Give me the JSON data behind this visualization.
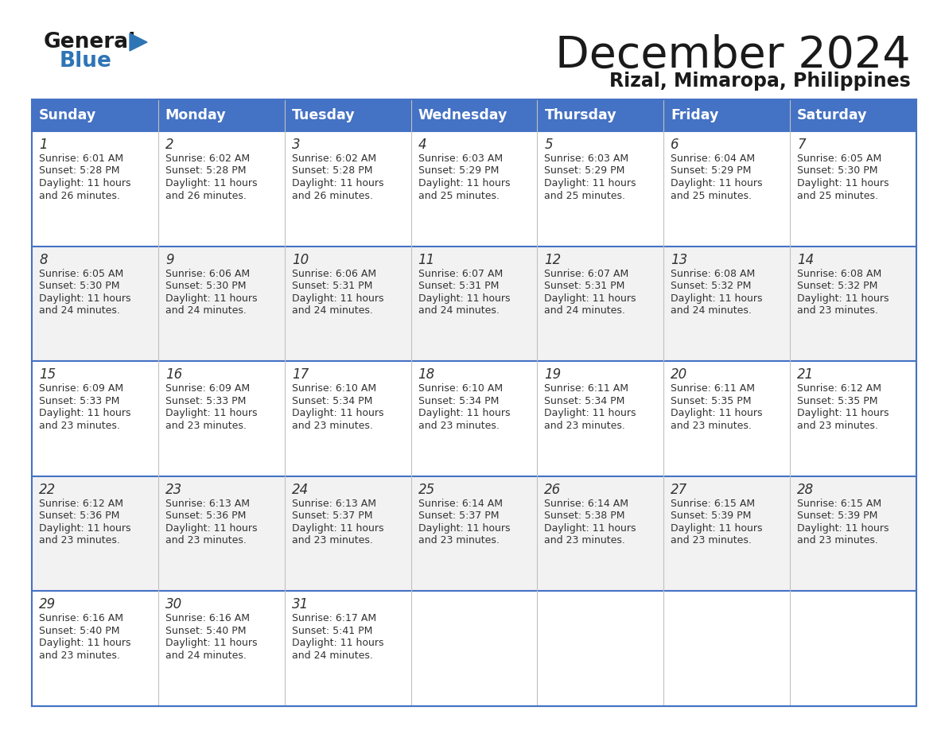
{
  "title": "December 2024",
  "subtitle": "Rizal, Mimaropa, Philippines",
  "header_color": "#4472C4",
  "header_text_color": "#FFFFFF",
  "background_color": "#FFFFFF",
  "cell_bg_odd": "#FFFFFF",
  "cell_bg_even": "#F2F2F2",
  "border_color": "#4472C4",
  "text_color": "#333333",
  "days_of_week": [
    "Sunday",
    "Monday",
    "Tuesday",
    "Wednesday",
    "Thursday",
    "Friday",
    "Saturday"
  ],
  "calendar_data": [
    [
      {
        "day": 1,
        "sunrise": "6:01 AM",
        "sunset": "5:28 PM",
        "daylight_minutes": "26"
      },
      {
        "day": 2,
        "sunrise": "6:02 AM",
        "sunset": "5:28 PM",
        "daylight_minutes": "26"
      },
      {
        "day": 3,
        "sunrise": "6:02 AM",
        "sunset": "5:28 PM",
        "daylight_minutes": "26"
      },
      {
        "day": 4,
        "sunrise": "6:03 AM",
        "sunset": "5:29 PM",
        "daylight_minutes": "25"
      },
      {
        "day": 5,
        "sunrise": "6:03 AM",
        "sunset": "5:29 PM",
        "daylight_minutes": "25"
      },
      {
        "day": 6,
        "sunrise": "6:04 AM",
        "sunset": "5:29 PM",
        "daylight_minutes": "25"
      },
      {
        "day": 7,
        "sunrise": "6:05 AM",
        "sunset": "5:30 PM",
        "daylight_minutes": "25"
      }
    ],
    [
      {
        "day": 8,
        "sunrise": "6:05 AM",
        "sunset": "5:30 PM",
        "daylight_minutes": "24"
      },
      {
        "day": 9,
        "sunrise": "6:06 AM",
        "sunset": "5:30 PM",
        "daylight_minutes": "24"
      },
      {
        "day": 10,
        "sunrise": "6:06 AM",
        "sunset": "5:31 PM",
        "daylight_minutes": "24"
      },
      {
        "day": 11,
        "sunrise": "6:07 AM",
        "sunset": "5:31 PM",
        "daylight_minutes": "24"
      },
      {
        "day": 12,
        "sunrise": "6:07 AM",
        "sunset": "5:31 PM",
        "daylight_minutes": "24"
      },
      {
        "day": 13,
        "sunrise": "6:08 AM",
        "sunset": "5:32 PM",
        "daylight_minutes": "24"
      },
      {
        "day": 14,
        "sunrise": "6:08 AM",
        "sunset": "5:32 PM",
        "daylight_minutes": "23"
      }
    ],
    [
      {
        "day": 15,
        "sunrise": "6:09 AM",
        "sunset": "5:33 PM",
        "daylight_minutes": "23"
      },
      {
        "day": 16,
        "sunrise": "6:09 AM",
        "sunset": "5:33 PM",
        "daylight_minutes": "23"
      },
      {
        "day": 17,
        "sunrise": "6:10 AM",
        "sunset": "5:34 PM",
        "daylight_minutes": "23"
      },
      {
        "day": 18,
        "sunrise": "6:10 AM",
        "sunset": "5:34 PM",
        "daylight_minutes": "23"
      },
      {
        "day": 19,
        "sunrise": "6:11 AM",
        "sunset": "5:34 PM",
        "daylight_minutes": "23"
      },
      {
        "day": 20,
        "sunrise": "6:11 AM",
        "sunset": "5:35 PM",
        "daylight_minutes": "23"
      },
      {
        "day": 21,
        "sunrise": "6:12 AM",
        "sunset": "5:35 PM",
        "daylight_minutes": "23"
      }
    ],
    [
      {
        "day": 22,
        "sunrise": "6:12 AM",
        "sunset": "5:36 PM",
        "daylight_minutes": "23"
      },
      {
        "day": 23,
        "sunrise": "6:13 AM",
        "sunset": "5:36 PM",
        "daylight_minutes": "23"
      },
      {
        "day": 24,
        "sunrise": "6:13 AM",
        "sunset": "5:37 PM",
        "daylight_minutes": "23"
      },
      {
        "day": 25,
        "sunrise": "6:14 AM",
        "sunset": "5:37 PM",
        "daylight_minutes": "23"
      },
      {
        "day": 26,
        "sunrise": "6:14 AM",
        "sunset": "5:38 PM",
        "daylight_minutes": "23"
      },
      {
        "day": 27,
        "sunrise": "6:15 AM",
        "sunset": "5:39 PM",
        "daylight_minutes": "23"
      },
      {
        "day": 28,
        "sunrise": "6:15 AM",
        "sunset": "5:39 PM",
        "daylight_minutes": "23"
      }
    ],
    [
      {
        "day": 29,
        "sunrise": "6:16 AM",
        "sunset": "5:40 PM",
        "daylight_minutes": "23"
      },
      {
        "day": 30,
        "sunrise": "6:16 AM",
        "sunset": "5:40 PM",
        "daylight_minutes": "24"
      },
      {
        "day": 31,
        "sunrise": "6:17 AM",
        "sunset": "5:41 PM",
        "daylight_minutes": "24"
      },
      null,
      null,
      null,
      null
    ]
  ],
  "logo_color_general": "#1a1a1a",
  "logo_color_blue": "#2E75B6",
  "logo_triangle_color": "#2E75B6"
}
